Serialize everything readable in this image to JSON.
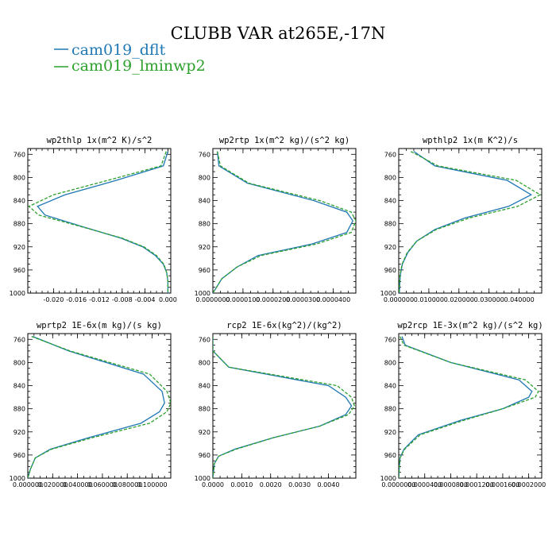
{
  "figure": {
    "title": "CLUBB VAR at265E,-17N"
  },
  "legend": [
    {
      "label": "cam019_dflt",
      "color": "#1f77b4",
      "dash": "solid"
    },
    {
      "label": "cam019_lminwp2",
      "color": "#2ca02c",
      "dash": "dashed"
    }
  ],
  "chart_data": [
    {
      "type": "line",
      "title": "wp2thlp   1x(m^2 K)/s^2",
      "ylim": [
        1000,
        750
      ],
      "yticks": [
        760,
        800,
        840,
        880,
        920,
        960,
        1000
      ],
      "xlim": [
        -0.0245,
        0.0005
      ],
      "xticks": [
        -0.02,
        -0.016,
        -0.012,
        -0.008,
        -0.004,
        0.0
      ],
      "xticklabels": [
        "-0.020",
        "-0.016",
        "-0.012",
        "-0.008",
        "-0.004",
        "0.000"
      ],
      "y": [
        755,
        780,
        805,
        830,
        850,
        865,
        885,
        905,
        920,
        935,
        950,
        965,
        980,
        1000
      ],
      "series": [
        {
          "name": "cam019_dflt",
          "values": [
            0.0,
            -0.0008,
            -0.009,
            -0.018,
            -0.0228,
            -0.0215,
            -0.015,
            -0.0082,
            -0.0044,
            -0.0022,
            -0.0008,
            -0.0002,
            0.0,
            0.0
          ]
        },
        {
          "name": "cam019_lminwp2",
          "values": [
            -0.0003,
            -0.0012,
            -0.0105,
            -0.02,
            -0.0243,
            -0.0226,
            -0.0152,
            -0.008,
            -0.0042,
            -0.002,
            -0.0007,
            -0.0002,
            0.0,
            0.0
          ]
        }
      ]
    },
    {
      "type": "line",
      "title": "wp2rtp   1x(m^2 kg)/(s^2 kg)",
      "ylim": [
        1000,
        750
      ],
      "yticks": [
        760,
        800,
        840,
        880,
        920,
        960,
        1000
      ],
      "xlim": [
        0.0,
        4.75e-05
      ],
      "xticks": [
        0.0,
        1e-05,
        2e-05,
        3e-05,
        4e-05
      ],
      "xticklabels": [
        "0.0000000",
        "0.0000100",
        "0.0000200",
        "0.0000300",
        "0.0000400"
      ],
      "y": [
        755,
        780,
        810,
        840,
        860,
        875,
        895,
        915,
        935,
        955,
        975,
        1000
      ],
      "series": [
        {
          "name": "cam019_dflt",
          "values": [
            1.5e-06,
            2e-06,
            1.15e-05,
            3.35e-05,
            4.45e-05,
            4.65e-05,
            4.45e-05,
            3.3e-05,
            1.5e-05,
            8e-06,
            3e-06,
            0.0
          ]
        },
        {
          "name": "cam019_lminwp2",
          "values": [
            1.5e-06,
            2.5e-06,
            1.2e-05,
            3.55e-05,
            4.6e-05,
            4.75e-05,
            4.6e-05,
            3.45e-05,
            1.6e-05,
            8e-06,
            3e-06,
            0.0
          ]
        }
      ]
    },
    {
      "type": "line",
      "title": "wpthlp2   1x(m K^2)/s",
      "ylim": [
        1000,
        750
      ],
      "yticks": [
        760,
        800,
        840,
        880,
        920,
        960,
        1000
      ],
      "xlim": [
        0.0,
        0.0475
      ],
      "xticks": [
        0.0,
        0.01,
        0.02,
        0.03,
        0.04
      ],
      "xticklabels": [
        "0.000000",
        "0.010000",
        "0.020000",
        "0.030000",
        "0.040000"
      ],
      "y": [
        755,
        780,
        805,
        830,
        850,
        870,
        890,
        910,
        930,
        950,
        970,
        1000
      ],
      "series": [
        {
          "name": "cam019_dflt",
          "values": [
            0.005,
            0.012,
            0.036,
            0.044,
            0.0365,
            0.022,
            0.012,
            0.006,
            0.003,
            0.0012,
            0.0005,
            0.0002
          ]
        },
        {
          "name": "cam019_lminwp2",
          "values": [
            0.004,
            0.013,
            0.039,
            0.047,
            0.0395,
            0.0235,
            0.0125,
            0.006,
            0.0028,
            0.0011,
            0.0004,
            0.0001
          ]
        }
      ]
    },
    {
      "type": "line",
      "title": "wprtp2   1E-6x(m kg)/(s kg)",
      "ylim": [
        1000,
        750
      ],
      "yticks": [
        760,
        800,
        840,
        880,
        920,
        960,
        1000
      ],
      "xlim": [
        0.0,
        0.115
      ],
      "xticks": [
        0.0,
        0.02,
        0.04,
        0.06,
        0.08,
        0.1
      ],
      "xticklabels": [
        "0.000000",
        "0.020000",
        "0.040000",
        "0.060000",
        "0.080000",
        "0.100000"
      ],
      "y": [
        755,
        780,
        820,
        850,
        870,
        885,
        905,
        930,
        950,
        965,
        985,
        1000
      ],
      "series": [
        {
          "name": "cam019_dflt",
          "values": [
            0.004,
            0.033,
            0.093,
            0.108,
            0.11,
            0.106,
            0.091,
            0.049,
            0.018,
            0.006,
            0.002,
            0.0
          ]
        },
        {
          "name": "cam019_lminwp2",
          "values": [
            0.003,
            0.034,
            0.098,
            0.112,
            0.115,
            0.112,
            0.098,
            0.052,
            0.019,
            0.006,
            0.002,
            0.0
          ]
        }
      ]
    },
    {
      "type": "line",
      "title": "rcp2   1E-6x(kg^2)/(kg^2)",
      "ylim": [
        1000,
        750
      ],
      "yticks": [
        760,
        800,
        840,
        880,
        920,
        960,
        1000
      ],
      "xlim": [
        0.0,
        0.00495
      ],
      "xticks": [
        0.0,
        0.001,
        0.002,
        0.003,
        0.004
      ],
      "xticklabels": [
        "0.0000",
        "0.0010",
        "0.0020",
        "0.0030",
        "0.0040"
      ],
      "y": [
        755,
        780,
        808,
        840,
        860,
        875,
        890,
        910,
        930,
        950,
        962,
        975,
        1000
      ],
      "series": [
        {
          "name": "cam019_dflt",
          "values": [
            0.0,
            0.0,
            0.00055,
            0.004,
            0.0046,
            0.0048,
            0.0046,
            0.0037,
            0.0021,
            0.00075,
            0.0002,
            5e-05,
            0.0
          ]
        },
        {
          "name": "cam019_lminwp2",
          "values": [
            0.0,
            0.0,
            0.00055,
            0.0043,
            0.0048,
            0.0049,
            0.0047,
            0.0037,
            0.0021,
            0.0008,
            0.0002,
            5e-05,
            0.0
          ]
        }
      ]
    },
    {
      "type": "line",
      "title": "wp2rcp   1E-3x(m^2 kg)/(s^2 kg)",
      "ylim": [
        1000,
        750
      ],
      "yticks": [
        760,
        800,
        840,
        880,
        920,
        960,
        1000
      ],
      "xlim": [
        0.0,
        0.00022
      ],
      "xticks": [
        0.0,
        4e-05,
        8e-05,
        0.00012,
        0.00016,
        0.0002
      ],
      "xticklabels": [
        "0.0000000",
        "0.0000400",
        "0.0000800",
        "0.0001200",
        "0.0001600",
        "0.0002000"
      ],
      "y": [
        755,
        770,
        800,
        830,
        850,
        860,
        880,
        900,
        925,
        950,
        965,
        980,
        1000
      ],
      "series": [
        {
          "name": "cam019_dflt",
          "values": [
            5e-06,
            1e-05,
            8e-05,
            0.000185,
            0.000205,
            0.0002,
            0.00016,
            9.5e-05,
            3e-05,
            8e-06,
            2e-06,
            1e-06,
            0.0
          ]
        },
        {
          "name": "cam019_lminwp2",
          "values": [
            2e-06,
            8e-06,
            8e-05,
            0.000195,
            0.000215,
            0.00021,
            0.00016,
            0.0001,
            3.3e-05,
            9e-06,
            2e-06,
            1e-06,
            0.0
          ]
        }
      ]
    }
  ]
}
